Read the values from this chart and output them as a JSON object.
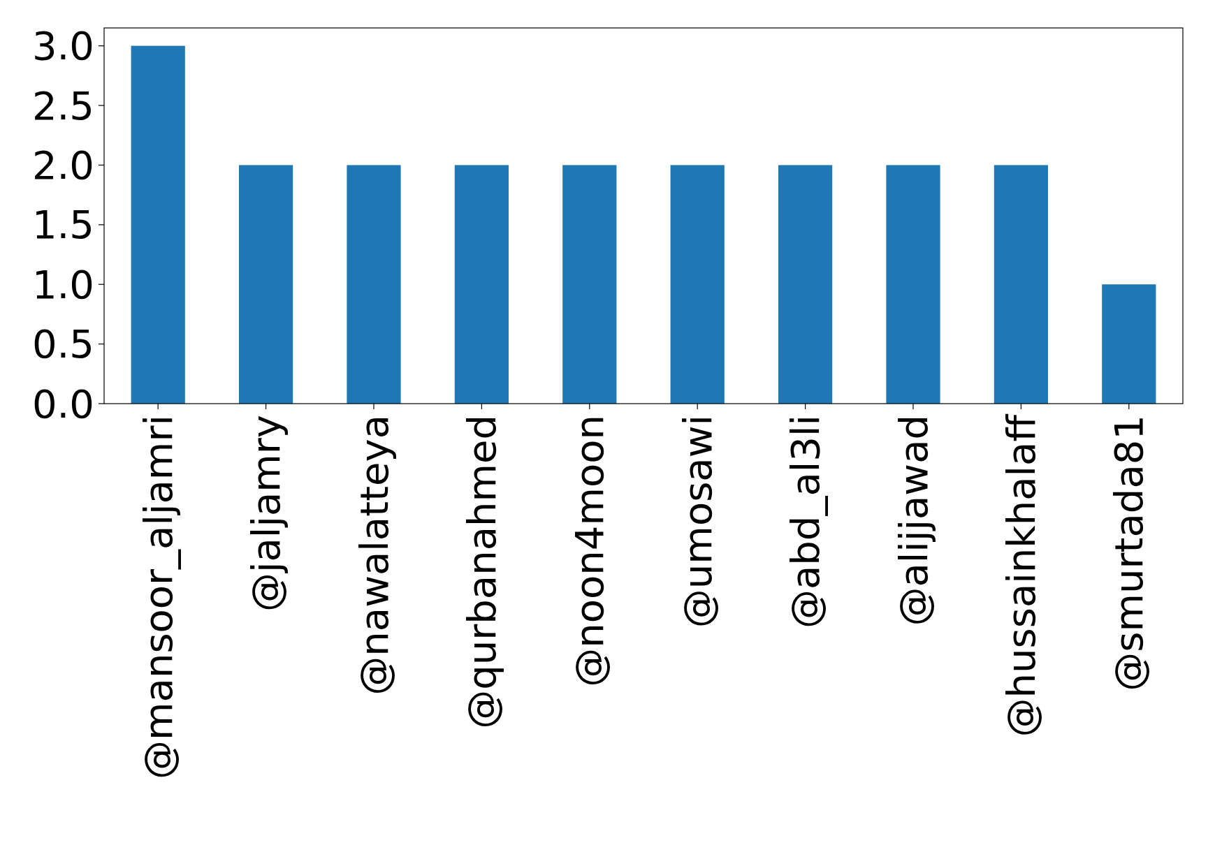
{
  "chart_data": {
    "type": "bar",
    "categories": [
      "@mansoor_aljamri",
      "@jaljamry",
      "@nawalatteya",
      "@qurbanahmed",
      "@noon4moon",
      "@umosawi",
      "@abd_al3li",
      "@alijjawad",
      "@hussainkhalaff",
      "@smurtada81"
    ],
    "values": [
      3,
      2,
      2,
      2,
      2,
      2,
      2,
      2,
      2,
      1
    ],
    "color": "#1f77b4",
    "ylim": [
      0,
      3.15
    ],
    "yticks": [
      {
        "value": 0,
        "label": "0.0"
      },
      {
        "value": 0.5,
        "label": "0.5"
      },
      {
        "value": 1,
        "label": "1.0"
      },
      {
        "value": 1.5,
        "label": "1.5"
      },
      {
        "value": 2,
        "label": "2.0"
      },
      {
        "value": 2.5,
        "label": "2.5"
      },
      {
        "value": 3,
        "label": "3.0"
      }
    ],
    "grid": false
  }
}
